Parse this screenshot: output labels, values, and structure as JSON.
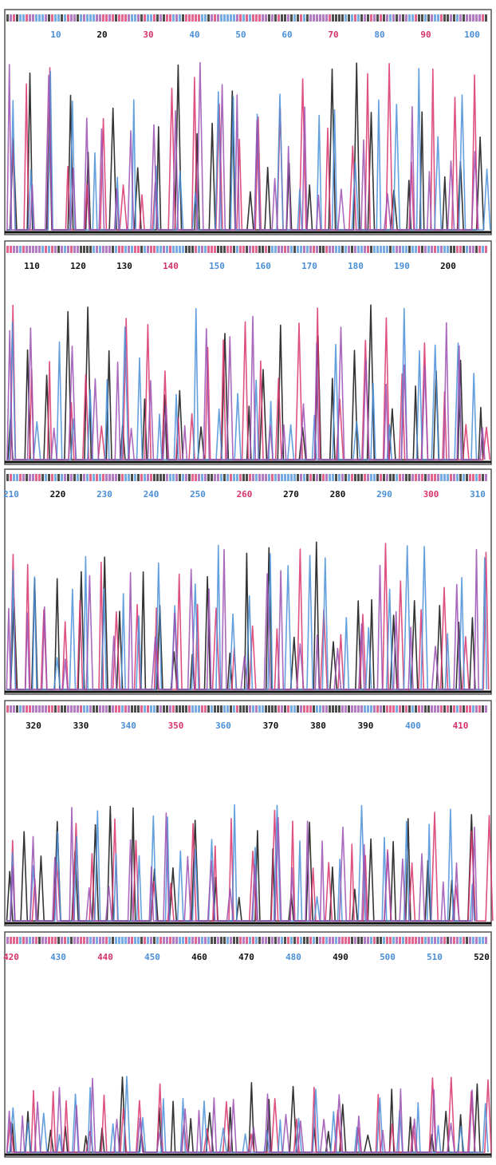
{
  "panels": [
    {
      "positions": [
        {
          "label": 10,
          "color": "#4a8fd8"
        },
        {
          "label": 20,
          "color": "#111111"
        },
        {
          "label": 30,
          "color": "#d8326a"
        },
        {
          "label": 40,
          "color": "#4a8fd8"
        },
        {
          "label": 50,
          "color": "#4a8fd8"
        },
        {
          "label": 60,
          "color": "#4a8fd8"
        },
        {
          "label": 70,
          "color": "#d8326a"
        },
        {
          "label": 80,
          "color": "#4a8fd8"
        },
        {
          "label": 90,
          "color": "#d8326a"
        },
        {
          "label": 100,
          "color": "#4a8fd8"
        }
      ]
    },
    {
      "positions": [
        {
          "label": 110,
          "color": "#111111"
        },
        {
          "label": 120,
          "color": "#111111"
        },
        {
          "label": 130,
          "color": "#111111"
        },
        {
          "label": 140,
          "color": "#d8326a"
        },
        {
          "label": 150,
          "color": "#4a8fd8"
        },
        {
          "label": 160,
          "color": "#4a8fd8"
        },
        {
          "label": 170,
          "color": "#4a8fd8"
        },
        {
          "label": 180,
          "color": "#4a8fd8"
        },
        {
          "label": 190,
          "color": "#4a8fd8"
        },
        {
          "label": 200,
          "color": "#111111"
        }
      ]
    },
    {
      "positions": [
        {
          "label": 210,
          "color": "#4a8fd8"
        },
        {
          "label": 220,
          "color": "#111111"
        },
        {
          "label": 230,
          "color": "#4a8fd8"
        },
        {
          "label": 240,
          "color": "#4a8fd8"
        },
        {
          "label": 250,
          "color": "#4a8fd8"
        },
        {
          "label": 260,
          "color": "#d8326a"
        },
        {
          "label": 270,
          "color": "#111111"
        },
        {
          "label": 280,
          "color": "#111111"
        },
        {
          "label": 290,
          "color": "#4a8fd8"
        },
        {
          "label": 300,
          "color": "#d8326a"
        },
        {
          "label": 310,
          "color": "#4a8fd8"
        }
      ]
    },
    {
      "positions": [
        {
          "label": 320,
          "color": "#111111"
        },
        {
          "label": 330,
          "color": "#111111"
        },
        {
          "label": 340,
          "color": "#4a8fd8"
        },
        {
          "label": 350,
          "color": "#d8326a"
        },
        {
          "label": 360,
          "color": "#4a8fd8"
        },
        {
          "label": 370,
          "color": "#111111"
        },
        {
          "label": 380,
          "color": "#111111"
        },
        {
          "label": 390,
          "color": "#111111"
        },
        {
          "label": 400,
          "color": "#4a8fd8"
        },
        {
          "label": 410,
          "color": "#d8326a"
        }
      ]
    },
    {
      "positions": [
        {
          "label": 420,
          "color": "#d8326a"
        },
        {
          "label": 430,
          "color": "#4a8fd8"
        },
        {
          "label": 440,
          "color": "#d8326a"
        },
        {
          "label": 450,
          "color": "#4a8fd8"
        },
        {
          "label": 460,
          "color": "#111111"
        },
        {
          "label": 470,
          "color": "#111111"
        },
        {
          "label": 480,
          "color": "#4a8fd8"
        },
        {
          "label": 490,
          "color": "#111111"
        },
        {
          "label": 500,
          "color": "#4a8fd8"
        },
        {
          "label": 510,
          "color": "#4a8fd8"
        },
        {
          "label": 520,
          "color": "#111111"
        }
      ]
    }
  ]
}
